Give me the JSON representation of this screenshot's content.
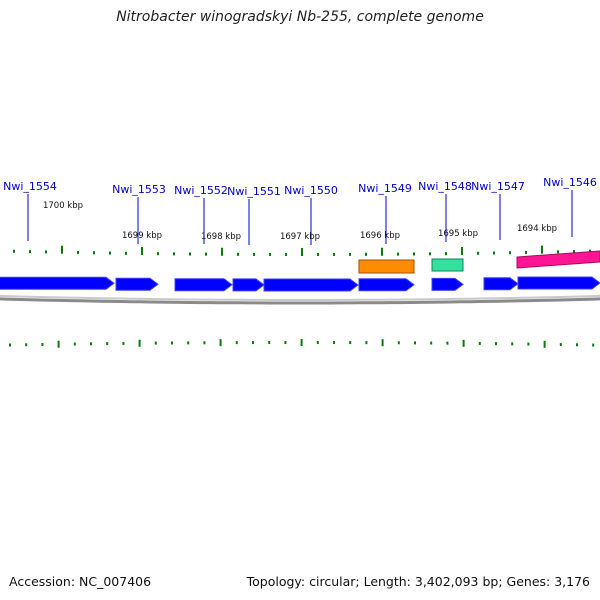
{
  "title": "Nitrobacter winogradskyi Nb-255, complete genome",
  "footer": {
    "accession": "Accession: NC_007406",
    "topology": "Topology: circular; Length: 3,402,093 bp; Genes: 3,176"
  },
  "colors": {
    "gene_blue": "#0000ff",
    "label_blue": "#0000cc",
    "tick_green": "#0a7a0a",
    "orange": "#ff8c00",
    "teal": "#33e0a0",
    "magenta": "#ff1493",
    "backbone": "#8a8a8a"
  },
  "scale": {
    "ticks": [
      "1700 kbp",
      "1699 kbp",
      "1698 kbp",
      "1697 kbp",
      "1696 kbp",
      "1695 kbp",
      "1694 kbp"
    ]
  },
  "genes": [
    {
      "label": "Nwi_1554"
    },
    {
      "label": "Nwi_1553"
    },
    {
      "label": "Nwi_1552"
    },
    {
      "label": "Nwi_1551"
    },
    {
      "label": "Nwi_1550"
    },
    {
      "label": "Nwi_1549"
    },
    {
      "label": "Nwi_1548"
    },
    {
      "label": "Nwi_1547"
    },
    {
      "label": "Nwi_1546"
    }
  ]
}
